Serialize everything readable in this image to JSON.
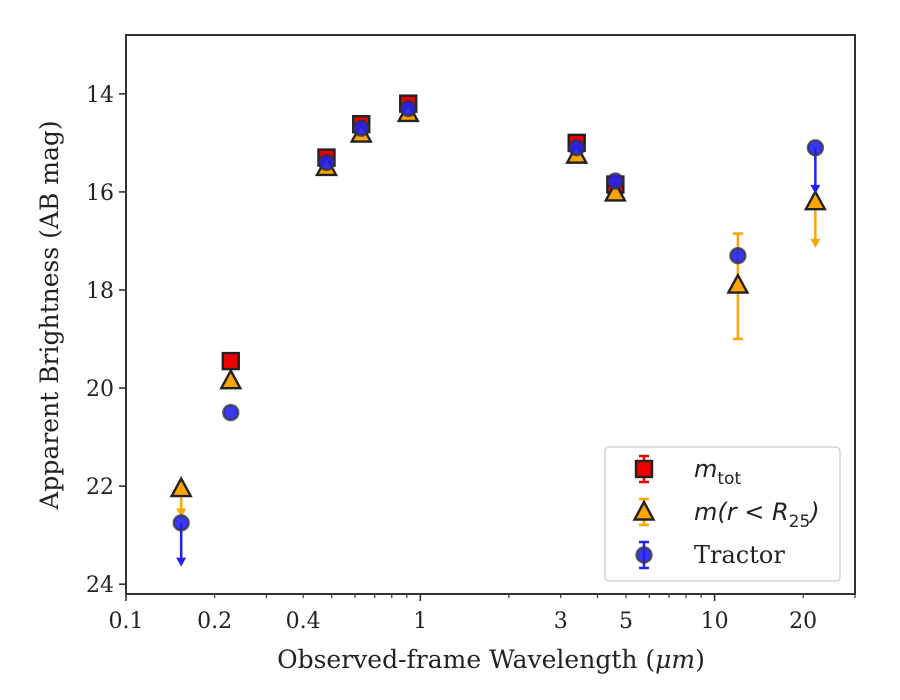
{
  "chart_data": {
    "type": "scatter",
    "xlabel_prefix": "Observed-frame Wavelength (",
    "xlabel_unit": "μm",
    "xlabel_suffix": ")",
    "ylabel": "Apparent Brightness (AB mag)",
    "xscale": "log",
    "xlim": [
      0.1,
      30
    ],
    "ylim": [
      24.2,
      12.8
    ],
    "y_inverted": true,
    "grid": false,
    "legend_position": "lower-right",
    "x_ticks": [
      {
        "value": 0.1,
        "label": "0.1"
      },
      {
        "value": 0.2,
        "label": "0.2"
      },
      {
        "value": 0.4,
        "label": "0.4"
      },
      {
        "value": 1,
        "label": "1"
      },
      {
        "value": 3,
        "label": "3"
      },
      {
        "value": 5,
        "label": "5"
      },
      {
        "value": 10,
        "label": "10"
      },
      {
        "value": 20,
        "label": "20"
      }
    ],
    "y_ticks": [
      {
        "value": 14,
        "label": "14"
      },
      {
        "value": 16,
        "label": "16"
      },
      {
        "value": 18,
        "label": "18"
      },
      {
        "value": 20,
        "label": "20"
      },
      {
        "value": 22,
        "label": "22"
      },
      {
        "value": 24,
        "label": "24"
      }
    ],
    "series": [
      {
        "key": "mtot",
        "legend_label": "m",
        "legend_sub": "tot",
        "marker": "square",
        "color": "#ee0000",
        "ecolor": "#ee0000",
        "points": [
          {
            "x": 0.227,
            "y": 19.45,
            "err": 0
          },
          {
            "x": 0.48,
            "y": 15.3,
            "err": 0.1
          },
          {
            "x": 0.63,
            "y": 14.62,
            "err": 0.1
          },
          {
            "x": 0.91,
            "y": 14.2,
            "err": 0.1
          },
          {
            "x": 3.4,
            "y": 15.0,
            "err": 0.08
          },
          {
            "x": 4.6,
            "y": 15.85,
            "err": 0.12
          }
        ]
      },
      {
        "key": "mr25",
        "legend_label": "m(r < R",
        "legend_sub": "25",
        "legend_suffix": ")",
        "marker": "triangle",
        "color": "#ffa500",
        "ecolor": "#ffa500",
        "points": [
          {
            "x": 0.154,
            "y": 22.05,
            "upper_limit": true,
            "arrow_to": 22.6
          },
          {
            "x": 0.227,
            "y": 19.85,
            "err": 0
          },
          {
            "x": 0.48,
            "y": 15.5,
            "err": 0
          },
          {
            "x": 0.63,
            "y": 14.82,
            "err": 0
          },
          {
            "x": 0.91,
            "y": 14.4,
            "err": 0
          },
          {
            "x": 3.4,
            "y": 15.25,
            "err": 0
          },
          {
            "x": 4.6,
            "y": 16.02,
            "err": 0
          },
          {
            "x": 12.0,
            "y": 17.9,
            "err_low": 0.05,
            "err_high": 1.1,
            "err_plus": 1.1,
            "err_minus": 1.05
          },
          {
            "x": 22.0,
            "y": 16.2,
            "upper_limit": true,
            "arrow_to": 17.1
          }
        ]
      },
      {
        "key": "tractor",
        "legend_label": "Tractor",
        "marker": "circle",
        "color": "#2222ee",
        "ecolor": "#2222ee",
        "points": [
          {
            "x": 0.154,
            "y": 22.75,
            "upper_limit": true,
            "arrow_to": 23.6
          },
          {
            "x": 0.227,
            "y": 20.5,
            "err": 0
          },
          {
            "x": 0.48,
            "y": 15.4,
            "err": 0
          },
          {
            "x": 0.63,
            "y": 14.7,
            "err": 0
          },
          {
            "x": 0.91,
            "y": 14.3,
            "err": 0
          },
          {
            "x": 3.4,
            "y": 15.1,
            "err": 0
          },
          {
            "x": 4.6,
            "y": 15.78,
            "err": 0
          },
          {
            "x": 12.0,
            "y": 17.3,
            "err": 0
          },
          {
            "x": 22.0,
            "y": 15.1,
            "upper_limit": true,
            "arrow_to": 16.0
          }
        ]
      }
    ]
  }
}
